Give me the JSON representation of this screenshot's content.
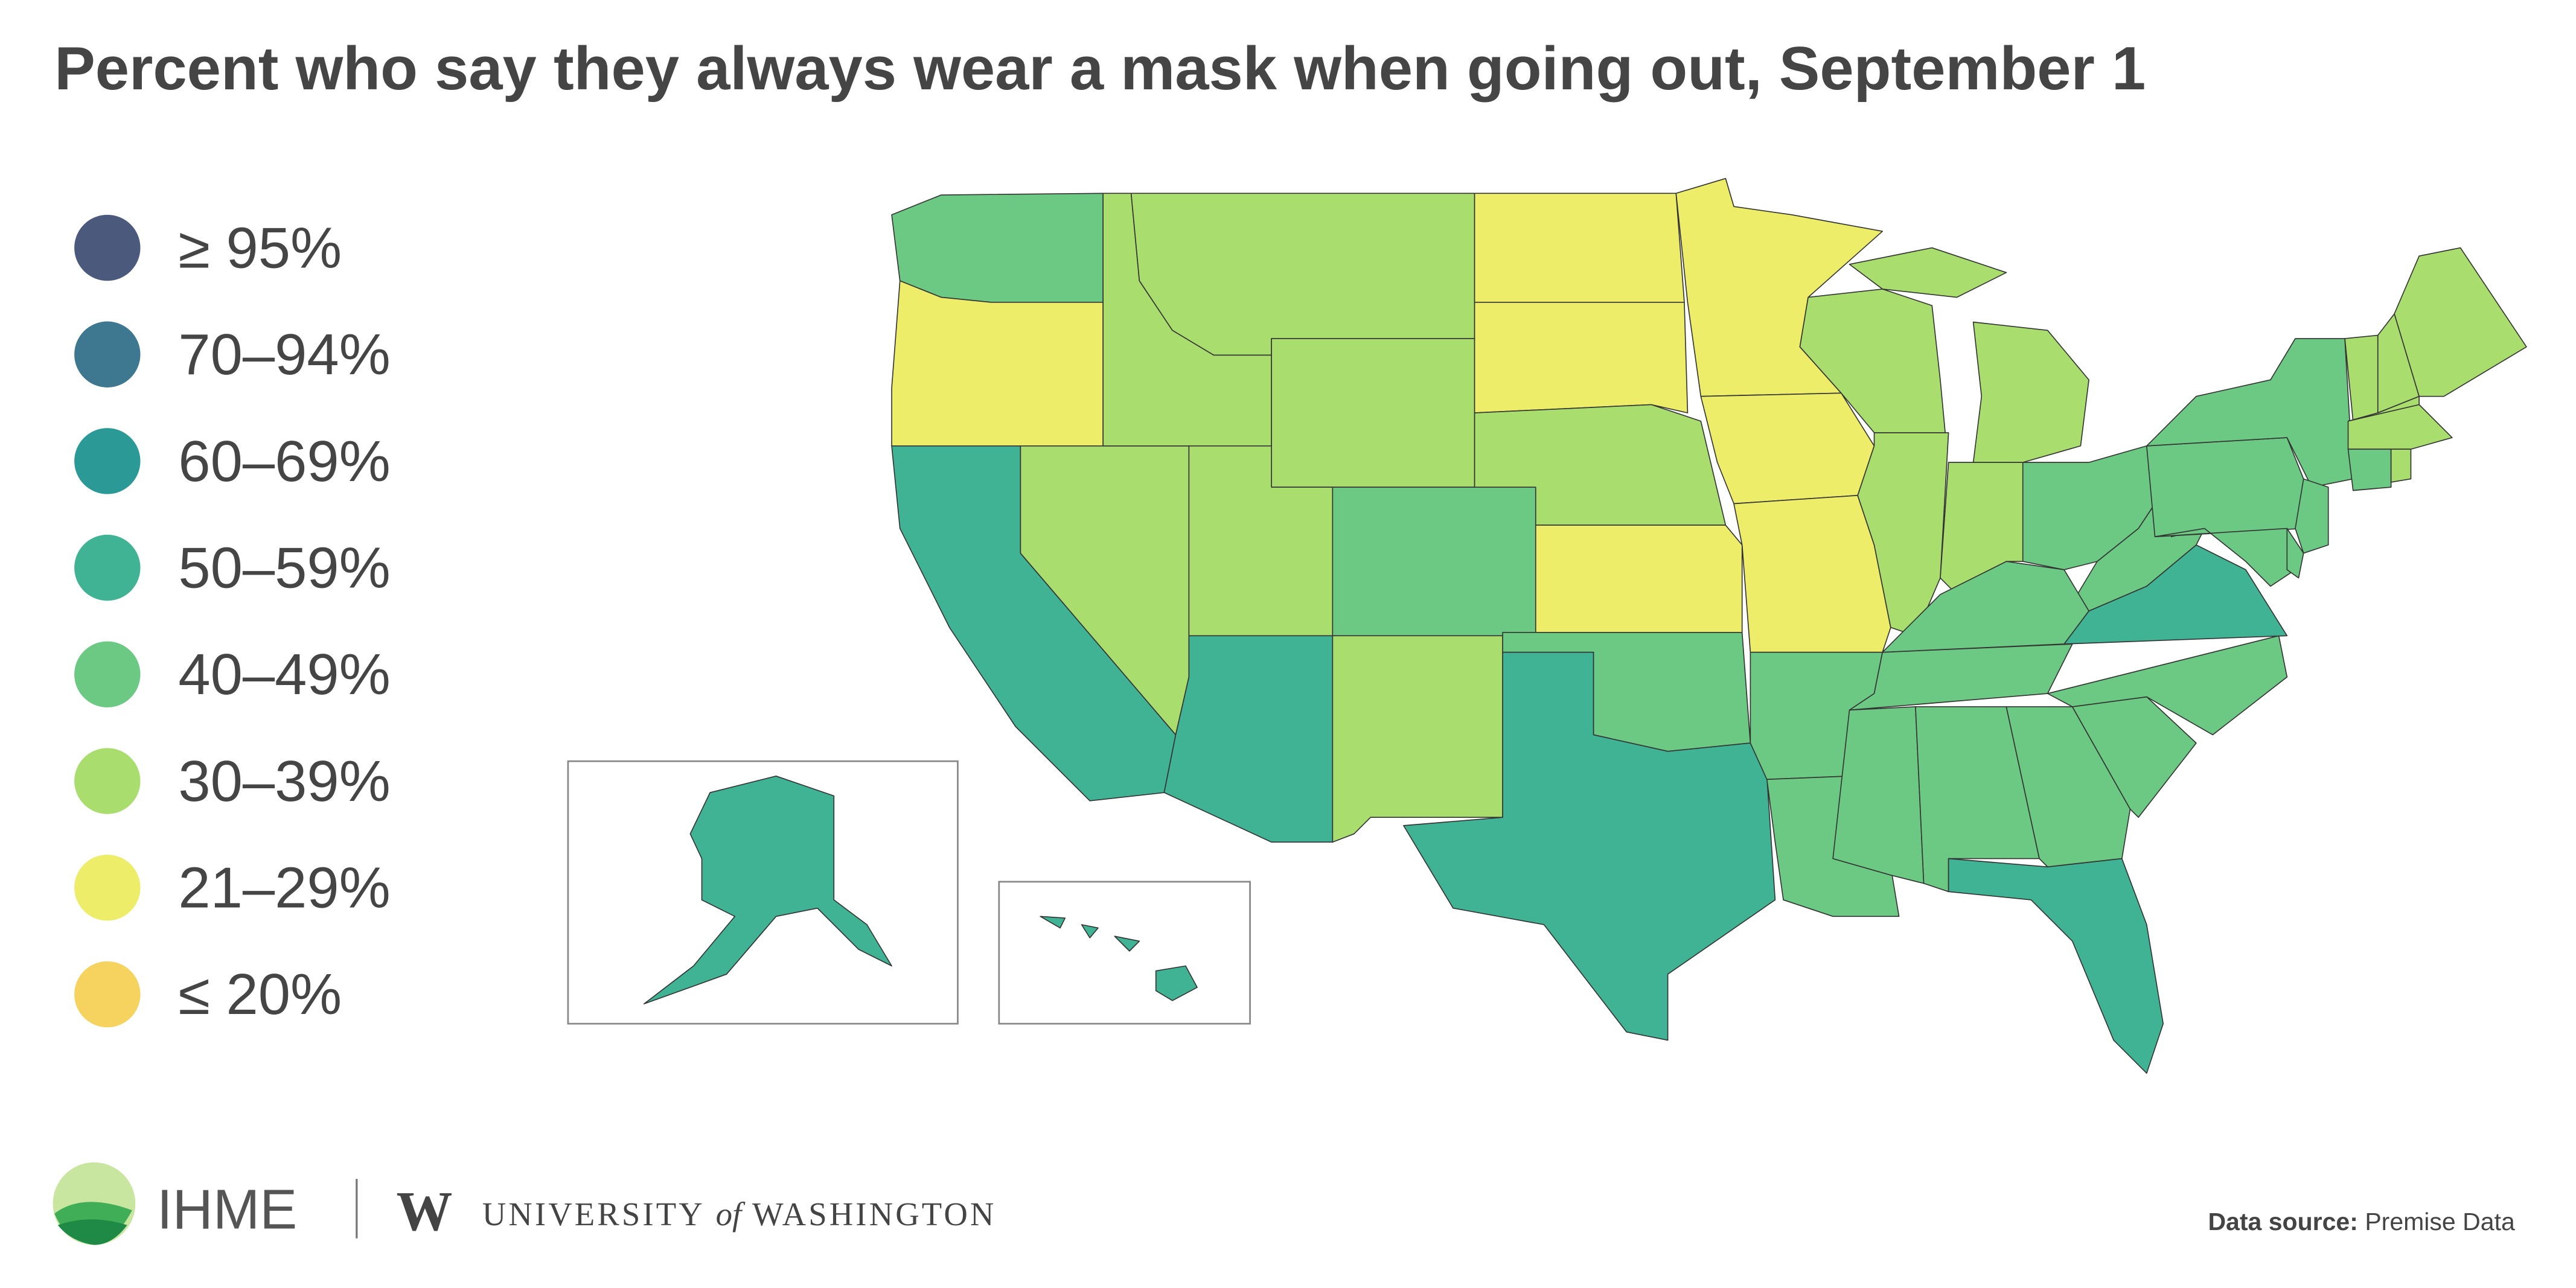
{
  "chart_data": {
    "type": "choropleth",
    "title": "Percent who say they always wear a mask when going out, September 1",
    "legend": [
      {
        "label": "≥ 95%",
        "color": "#4b5a7c"
      },
      {
        "label": "70–94%",
        "color": "#3e7890"
      },
      {
        "label": "60–69%",
        "color": "#2b9a97"
      },
      {
        "label": "50–59%",
        "color": "#3fb394"
      },
      {
        "label": "40–49%",
        "color": "#6cc983"
      },
      {
        "label": "30–39%",
        "color": "#a9de6f"
      },
      {
        "label": "21–29%",
        "color": "#eded69"
      },
      {
        "label": "≤ 20%",
        "color": "#f5d35e"
      }
    ],
    "regions": [
      4,
      6,
      3,
      5,
      5,
      5,
      5,
      5,
      4,
      3,
      5,
      6,
      6,
      5,
      6,
      4,
      3,
      6,
      6,
      6,
      4,
      4,
      4,
      4,
      4,
      3,
      4,
      4,
      4,
      3,
      4,
      4,
      5,
      5,
      4,
      5,
      5,
      5,
      4,
      4,
      4,
      4,
      4,
      4,
      5,
      5,
      5,
      5,
      5,
      5,
      3,
      3
    ],
    "footer": {
      "org": "IHME",
      "w": "W",
      "university": "UNIVERSITY",
      "of": "of",
      "washington": "WASHINGTON",
      "source_label": "Data source:",
      "source": "Premise Data"
    }
  }
}
